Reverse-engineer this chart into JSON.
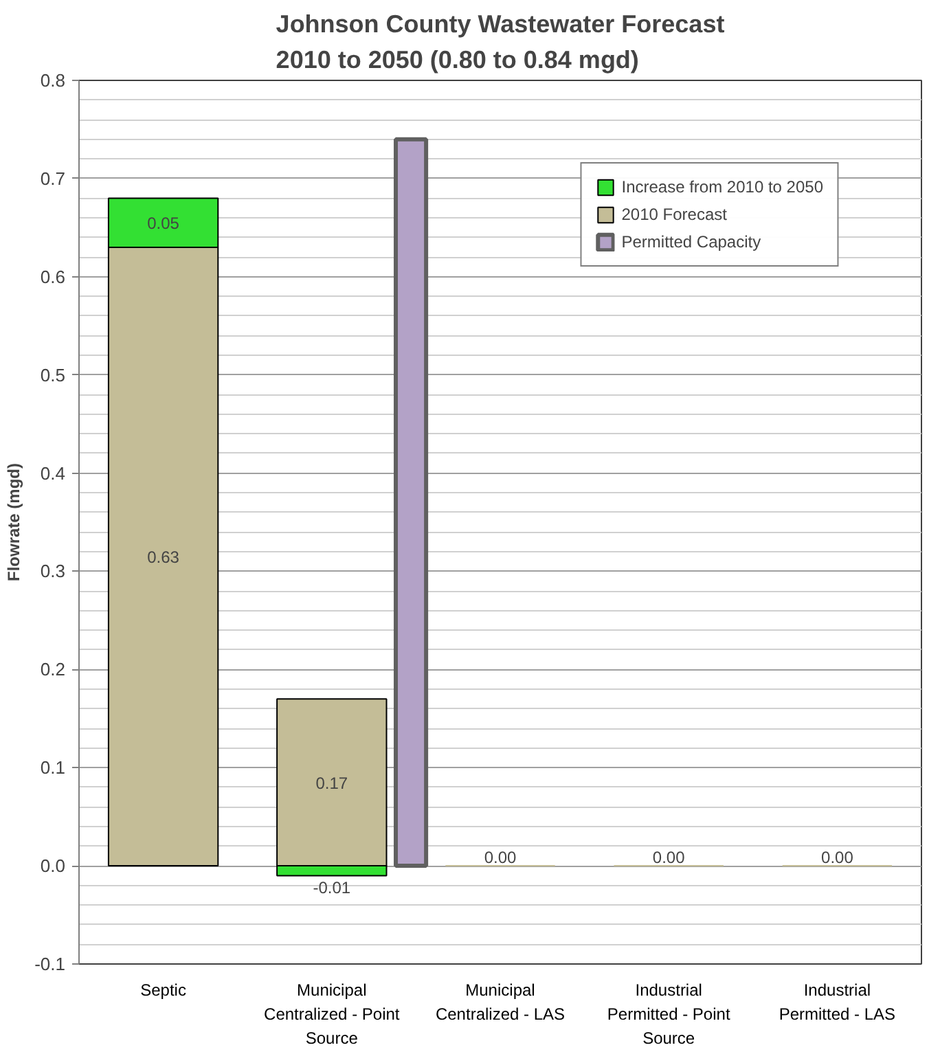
{
  "chart_data": {
    "type": "bar",
    "title": "Johnson County Wastewater Forecast\n2010 to 2050 (0.80 to 0.84 mgd)",
    "ylabel": "Flowrate (mgd)",
    "categories": [
      "Septic",
      "Municipal\nCentralized - Point\nSource",
      "Municipal\nCentralized - LAS",
      "Industrial\nPermitted - Point\nSource",
      "Industrial\nPermitted - LAS"
    ],
    "series": [
      {
        "name": "2010 Forecast",
        "color": "#c4bd97",
        "values": [
          0.63,
          0.17,
          0,
          0,
          0
        ],
        "value_labels": [
          "0.63",
          "0.17",
          "0.00",
          "0.00",
          "0.00"
        ]
      },
      {
        "name": "Increase from 2010 to 2050",
        "color": "#33e033",
        "values": [
          0.05,
          -0.01,
          null,
          null,
          null
        ],
        "base": [
          0.63,
          0,
          null,
          null,
          null
        ],
        "value_labels": [
          "0.05",
          "-0.01",
          null,
          null,
          null
        ]
      },
      {
        "name": "Permitted Capacity",
        "color": "#b3a2c7",
        "values": [
          null,
          0.74,
          null,
          null,
          null
        ]
      }
    ],
    "ylim": [
      -0.1,
      0.8
    ],
    "yticks": [
      -0.1,
      {
        "value": 0,
        "label": "0.0"
      },
      0.1,
      0.2,
      0.3,
      0.4,
      0.5,
      0.6,
      0.7,
      0.8
    ],
    "grid": "y",
    "legend": "top right"
  }
}
